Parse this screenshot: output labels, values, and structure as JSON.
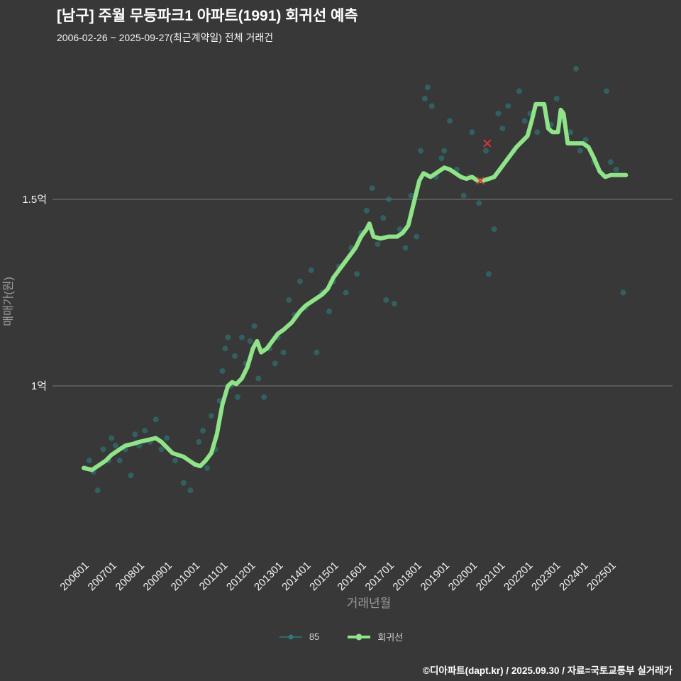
{
  "header": {
    "title": "[남구] 주월 무등파크1 아파트(1991) 회귀선 예측",
    "subtitle": "2006-02-26 ~ 2025-09-27(최근계약일) 전체 거래건"
  },
  "footer": {
    "credit": "©디아파트(dapt.kr) / 2025.09.30 / 자료=국토교통부 실거래가"
  },
  "legend": {
    "items": [
      {
        "label": "85",
        "color": "#2e7a7a",
        "line_width": 1.5,
        "dot_r": 3.5
      },
      {
        "label": "회귀선",
        "color": "#8fe388",
        "line_width": 4,
        "dot_r": 4.5
      }
    ]
  },
  "chart_data": {
    "type": "scatter",
    "title": "[남구] 주월 무등파크1 아파트(1991) 회귀선 예측",
    "xlabel": "거래년월",
    "ylabel": "매매가(원)",
    "background": "#383838",
    "grid_color": "#8c8c8c",
    "tick_color": "#f5f5f5",
    "axis_label_color": "#9c9c9c",
    "legend_position": "bottom-center",
    "x_ticks": [
      "200601",
      "200701",
      "200801",
      "200901",
      "201001",
      "201101",
      "201201",
      "201301",
      "201401",
      "201501",
      "201601",
      "201701",
      "201801",
      "201901",
      "202001",
      "202101",
      "202201",
      "202301",
      "202401",
      "202501"
    ],
    "y_ticks": [
      {
        "label": "1.5억",
        "value": 1.5
      },
      {
        "label": "1억",
        "value": 1.0
      }
    ],
    "y_unit": "억원",
    "ylim": [
      0.55,
      1.88
    ],
    "xlim_years": [
      2005.3,
      2026.2
    ],
    "series": [
      {
        "name": "85",
        "type": "scatter",
        "color": "#2e7a7a",
        "opacity": 0.6,
        "points": [
          [
            2006.05,
            0.78
          ],
          [
            2006.2,
            0.8
          ],
          [
            2006.35,
            0.77
          ],
          [
            2006.5,
            0.72
          ],
          [
            2006.7,
            0.83
          ],
          [
            2006.9,
            0.8
          ],
          [
            2007.0,
            0.86
          ],
          [
            2007.15,
            0.84
          ],
          [
            2007.3,
            0.8
          ],
          [
            2007.5,
            0.83
          ],
          [
            2007.7,
            0.76
          ],
          [
            2007.85,
            0.87
          ],
          [
            2008.0,
            0.84
          ],
          [
            2008.2,
            0.88
          ],
          [
            2008.4,
            0.85
          ],
          [
            2008.6,
            0.91
          ],
          [
            2008.8,
            0.83
          ],
          [
            2009.0,
            0.86
          ],
          [
            2009.3,
            0.8
          ],
          [
            2009.6,
            0.74
          ],
          [
            2009.85,
            0.72
          ],
          [
            2010.0,
            0.79
          ],
          [
            2010.15,
            0.85
          ],
          [
            2010.3,
            0.88
          ],
          [
            2010.45,
            0.78
          ],
          [
            2010.6,
            0.92
          ],
          [
            2010.75,
            0.83
          ],
          [
            2010.9,
            0.96
          ],
          [
            2011.0,
            1.04
          ],
          [
            2011.1,
            1.1
          ],
          [
            2011.2,
            1.13
          ],
          [
            2011.3,
            1.0
          ],
          [
            2011.45,
            1.08
          ],
          [
            2011.55,
            0.97
          ],
          [
            2011.7,
            1.13
          ],
          [
            2011.85,
            1.06
          ],
          [
            2012.0,
            1.12
          ],
          [
            2012.15,
            1.16
          ],
          [
            2012.3,
            1.02
          ],
          [
            2012.5,
            0.97
          ],
          [
            2012.7,
            1.1
          ],
          [
            2012.9,
            1.06
          ],
          [
            2013.0,
            1.13
          ],
          [
            2013.2,
            1.09
          ],
          [
            2013.4,
            1.23
          ],
          [
            2013.6,
            1.19
          ],
          [
            2013.8,
            1.28
          ],
          [
            2014.0,
            1.21
          ],
          [
            2014.2,
            1.31
          ],
          [
            2014.4,
            1.09
          ],
          [
            2014.6,
            1.25
          ],
          [
            2014.85,
            1.2
          ],
          [
            2015.0,
            1.28
          ],
          [
            2015.2,
            1.32
          ],
          [
            2015.45,
            1.25
          ],
          [
            2015.65,
            1.37
          ],
          [
            2015.85,
            1.3
          ],
          [
            2016.0,
            1.41
          ],
          [
            2016.2,
            1.47
          ],
          [
            2016.4,
            1.53
          ],
          [
            2016.6,
            1.38
          ],
          [
            2016.8,
            1.45
          ],
          [
            2016.9,
            1.23
          ],
          [
            2017.0,
            1.5
          ],
          [
            2017.2,
            1.22
          ],
          [
            2017.4,
            1.42
          ],
          [
            2017.6,
            1.37
          ],
          [
            2017.8,
            1.51
          ],
          [
            2018.0,
            1.4
          ],
          [
            2018.15,
            1.63
          ],
          [
            2018.3,
            1.77
          ],
          [
            2018.4,
            1.8
          ],
          [
            2018.55,
            1.75
          ],
          [
            2018.7,
            1.56
          ],
          [
            2018.9,
            1.61
          ],
          [
            2019.0,
            1.63
          ],
          [
            2019.2,
            1.71
          ],
          [
            2019.45,
            1.58
          ],
          [
            2019.7,
            1.51
          ],
          [
            2019.9,
            1.56
          ],
          [
            2020.0,
            1.68
          ],
          [
            2020.25,
            1.49
          ],
          [
            2020.5,
            1.63
          ],
          [
            2020.6,
            1.3
          ],
          [
            2020.8,
            1.42
          ],
          [
            2020.95,
            1.73
          ],
          [
            2021.1,
            1.69
          ],
          [
            2021.3,
            1.75
          ],
          [
            2021.5,
            1.63
          ],
          [
            2021.7,
            1.79
          ],
          [
            2021.9,
            1.71
          ],
          [
            2022.1,
            1.73
          ],
          [
            2022.35,
            1.68
          ],
          [
            2022.6,
            1.75
          ],
          [
            2022.85,
            1.7
          ],
          [
            2023.05,
            1.77
          ],
          [
            2023.3,
            1.71
          ],
          [
            2023.55,
            1.68
          ],
          [
            2023.75,
            1.85
          ],
          [
            2023.9,
            1.63
          ],
          [
            2024.1,
            1.66
          ],
          [
            2024.4,
            1.6
          ],
          [
            2024.85,
            1.79
          ],
          [
            2025.0,
            1.6
          ],
          [
            2025.2,
            1.58
          ],
          [
            2025.45,
            1.25
          ]
        ]
      },
      {
        "name": "회귀선",
        "type": "line",
        "color": "#8fe388",
        "width": 6,
        "points": [
          [
            2006.0,
            0.78
          ],
          [
            2006.3,
            0.775
          ],
          [
            2006.6,
            0.79
          ],
          [
            2006.8,
            0.8
          ],
          [
            2007.0,
            0.815
          ],
          [
            2007.3,
            0.83
          ],
          [
            2007.5,
            0.84
          ],
          [
            2007.8,
            0.845
          ],
          [
            2008.0,
            0.85
          ],
          [
            2008.3,
            0.855
          ],
          [
            2008.6,
            0.86
          ],
          [
            2008.8,
            0.85
          ],
          [
            2009.0,
            0.835
          ],
          [
            2009.2,
            0.82
          ],
          [
            2009.4,
            0.815
          ],
          [
            2009.6,
            0.81
          ],
          [
            2009.8,
            0.8
          ],
          [
            2010.0,
            0.79
          ],
          [
            2010.2,
            0.785
          ],
          [
            2010.4,
            0.8
          ],
          [
            2010.6,
            0.82
          ],
          [
            2010.8,
            0.87
          ],
          [
            2011.0,
            0.95
          ],
          [
            2011.2,
            1.0
          ],
          [
            2011.35,
            1.01
          ],
          [
            2011.5,
            1.005
          ],
          [
            2011.7,
            1.02
          ],
          [
            2011.9,
            1.05
          ],
          [
            2012.1,
            1.1
          ],
          [
            2012.25,
            1.12
          ],
          [
            2012.4,
            1.09
          ],
          [
            2012.6,
            1.1
          ],
          [
            2012.8,
            1.12
          ],
          [
            2013.0,
            1.14
          ],
          [
            2013.2,
            1.15
          ],
          [
            2013.5,
            1.17
          ],
          [
            2013.8,
            1.2
          ],
          [
            2014.0,
            1.215
          ],
          [
            2014.3,
            1.23
          ],
          [
            2014.6,
            1.245
          ],
          [
            2014.8,
            1.26
          ],
          [
            2015.0,
            1.29
          ],
          [
            2015.3,
            1.32
          ],
          [
            2015.6,
            1.35
          ],
          [
            2015.8,
            1.37
          ],
          [
            2016.0,
            1.4
          ],
          [
            2016.2,
            1.42
          ],
          [
            2016.3,
            1.435
          ],
          [
            2016.45,
            1.4
          ],
          [
            2016.7,
            1.395
          ],
          [
            2017.0,
            1.4
          ],
          [
            2017.3,
            1.4
          ],
          [
            2017.5,
            1.41
          ],
          [
            2017.7,
            1.43
          ],
          [
            2017.9,
            1.49
          ],
          [
            2018.1,
            1.55
          ],
          [
            2018.25,
            1.57
          ],
          [
            2018.5,
            1.56
          ],
          [
            2018.7,
            1.57
          ],
          [
            2019.0,
            1.585
          ],
          [
            2019.2,
            1.58
          ],
          [
            2019.4,
            1.57
          ],
          [
            2019.6,
            1.56
          ],
          [
            2019.8,
            1.555
          ],
          [
            2020.0,
            1.56
          ],
          [
            2020.2,
            1.55
          ],
          [
            2020.4,
            1.55
          ],
          [
            2020.6,
            1.555
          ],
          [
            2020.8,
            1.56
          ],
          [
            2021.0,
            1.58
          ],
          [
            2021.2,
            1.6
          ],
          [
            2021.4,
            1.62
          ],
          [
            2021.6,
            1.64
          ],
          [
            2021.8,
            1.655
          ],
          [
            2022.0,
            1.67
          ],
          [
            2022.15,
            1.71
          ],
          [
            2022.3,
            1.755
          ],
          [
            2022.6,
            1.755
          ],
          [
            2022.75,
            1.69
          ],
          [
            2022.9,
            1.68
          ],
          [
            2023.1,
            1.68
          ],
          [
            2023.2,
            1.74
          ],
          [
            2023.3,
            1.73
          ],
          [
            2023.45,
            1.65
          ],
          [
            2023.7,
            1.65
          ],
          [
            2024.0,
            1.65
          ],
          [
            2024.2,
            1.64
          ],
          [
            2024.4,
            1.61
          ],
          [
            2024.6,
            1.575
          ],
          [
            2024.8,
            1.56
          ],
          [
            2025.0,
            1.565
          ],
          [
            2025.3,
            1.565
          ],
          [
            2025.55,
            1.565
          ]
        ]
      },
      {
        "name": "outliers",
        "type": "x-marker",
        "color": "#d93434",
        "points": [
          [
            2020.3,
            1.55
          ],
          [
            2020.55,
            1.65
          ]
        ]
      }
    ]
  }
}
